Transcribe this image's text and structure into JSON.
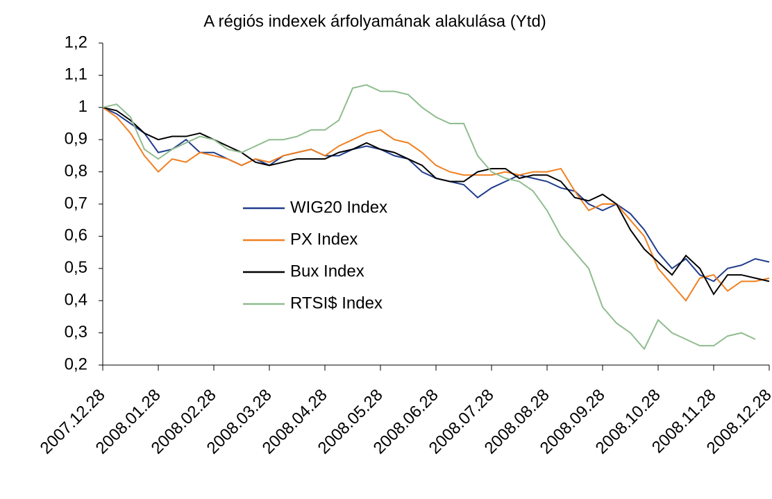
{
  "chart_data": {
    "type": "line",
    "title": "A régiós indexek árfolyamának alakulása (Ytd)",
    "categories": [
      "2007.12.28",
      null,
      null,
      null,
      "2008.01.28",
      null,
      null,
      null,
      "2008.02.28",
      null,
      null,
      null,
      "2008.03.28",
      null,
      null,
      null,
      "2008.04.28",
      null,
      null,
      null,
      "2008.05.28",
      null,
      null,
      null,
      "2008.06.28",
      null,
      null,
      null,
      "2008.07.28",
      null,
      null,
      null,
      "2008.08.28",
      null,
      null,
      null,
      "2008.09.28",
      null,
      null,
      null,
      "2008.10.28",
      null,
      null,
      null,
      "2008.11.28",
      null,
      null,
      null,
      "2008.12.28"
    ],
    "series": [
      {
        "name": "WIG20 Index",
        "color": "#1f3c8c",
        "values": [
          1.0,
          0.98,
          0.95,
          0.92,
          0.86,
          0.87,
          0.9,
          0.86,
          0.86,
          0.84,
          0.82,
          0.84,
          0.82,
          0.85,
          0.86,
          0.87,
          0.85,
          0.85,
          0.87,
          0.88,
          0.87,
          0.85,
          0.84,
          0.8,
          0.78,
          0.77,
          0.76,
          0.72,
          0.75,
          0.77,
          0.79,
          0.78,
          0.77,
          0.75,
          0.74,
          0.7,
          0.68,
          0.7,
          0.67,
          0.62,
          0.55,
          0.5,
          0.53,
          0.48,
          0.46,
          0.5,
          0.51,
          0.53,
          0.52
        ]
      },
      {
        "name": "PX Index",
        "color": "#f07f1f",
        "values": [
          1.0,
          0.97,
          0.92,
          0.85,
          0.8,
          0.84,
          0.83,
          0.86,
          0.85,
          0.84,
          0.82,
          0.84,
          0.83,
          0.85,
          0.86,
          0.87,
          0.85,
          0.88,
          0.9,
          0.92,
          0.93,
          0.9,
          0.89,
          0.86,
          0.82,
          0.8,
          0.79,
          0.79,
          0.79,
          0.8,
          0.79,
          0.8,
          0.8,
          0.81,
          0.74,
          0.68,
          0.7,
          0.7,
          0.65,
          0.6,
          0.5,
          0.45,
          0.4,
          0.47,
          0.48,
          0.43,
          0.46,
          0.46,
          0.47
        ]
      },
      {
        "name": "Bux Index",
        "color": "#000000",
        "values": [
          1.0,
          0.99,
          0.96,
          0.92,
          0.9,
          0.91,
          0.91,
          0.92,
          0.9,
          0.88,
          0.86,
          0.83,
          0.82,
          0.83,
          0.84,
          0.84,
          0.84,
          0.86,
          0.87,
          0.89,
          0.87,
          0.86,
          0.84,
          0.82,
          0.78,
          0.77,
          0.77,
          0.8,
          0.81,
          0.81,
          0.78,
          0.79,
          0.79,
          0.77,
          0.72,
          0.71,
          0.73,
          0.7,
          0.62,
          0.56,
          0.52,
          0.48,
          0.54,
          0.5,
          0.42,
          0.48,
          0.48,
          0.47,
          0.46
        ]
      },
      {
        "name": "RTSI$ Index",
        "color": "#8fbc8f",
        "values": [
          1.0,
          1.01,
          0.97,
          0.87,
          0.84,
          0.87,
          0.89,
          0.91,
          0.9,
          0.87,
          0.86,
          0.88,
          0.9,
          0.9,
          0.91,
          0.93,
          0.93,
          0.96,
          1.06,
          1.07,
          1.05,
          1.05,
          1.04,
          1.0,
          0.97,
          0.95,
          0.95,
          0.85,
          0.8,
          0.78,
          0.77,
          0.74,
          0.68,
          0.6,
          0.55,
          0.5,
          0.38,
          0.33,
          0.3,
          0.25,
          0.34,
          0.3,
          0.28,
          0.26,
          0.26,
          0.29,
          0.3,
          0.28,
          null
        ]
      }
    ],
    "ylim": [
      0.2,
      1.2
    ],
    "yticks": [
      {
        "value": 0.2,
        "label": "0,2"
      },
      {
        "value": 0.3,
        "label": "0,3"
      },
      {
        "value": 0.4,
        "label": "0,4"
      },
      {
        "value": 0.5,
        "label": "0,5"
      },
      {
        "value": 0.6,
        "label": "0,6"
      },
      {
        "value": 0.7,
        "label": "0,7"
      },
      {
        "value": 0.8,
        "label": "0,8"
      },
      {
        "value": 0.9,
        "label": "0,9"
      },
      1,
      {
        "value": 1.1,
        "label": "1,1"
      },
      {
        "value": 1.2,
        "label": "1,2"
      }
    ],
    "grid": false,
    "legend": "center"
  }
}
